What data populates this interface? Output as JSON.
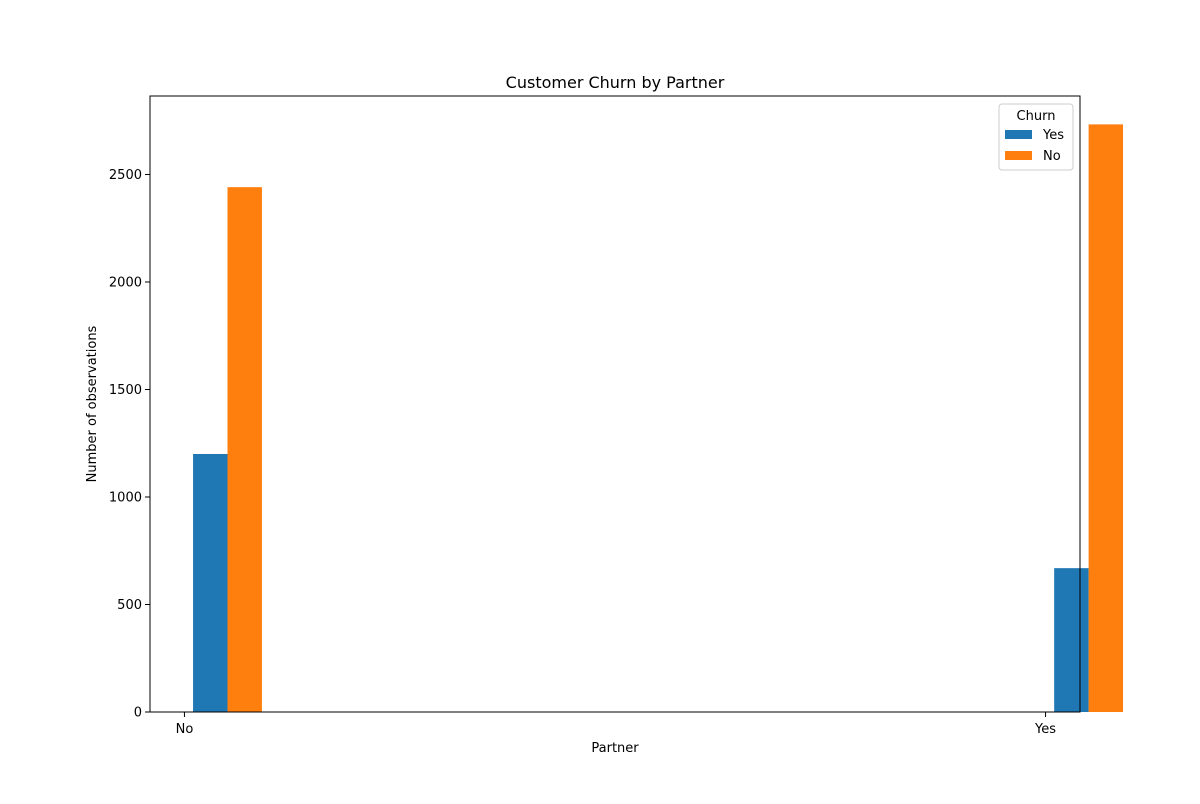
{
  "chart_data": {
    "type": "bar",
    "title": "Customer Churn by Partner",
    "xlabel": "Partner",
    "ylabel": "Number of observations",
    "categories": [
      "No",
      "Yes"
    ],
    "series": [
      {
        "name": "Yes",
        "values": [
          1200,
          669
        ],
        "color": "#1f77b4"
      },
      {
        "name": "No",
        "values": [
          2441,
          2733
        ],
        "color": "#ff7f0e"
      }
    ],
    "ylim": [
      0,
      2865
    ],
    "yticks": [
      0,
      500,
      1000,
      1500,
      2000,
      2500
    ],
    "grid": false,
    "legend": {
      "title": "Churn",
      "position": "top-right"
    }
  }
}
